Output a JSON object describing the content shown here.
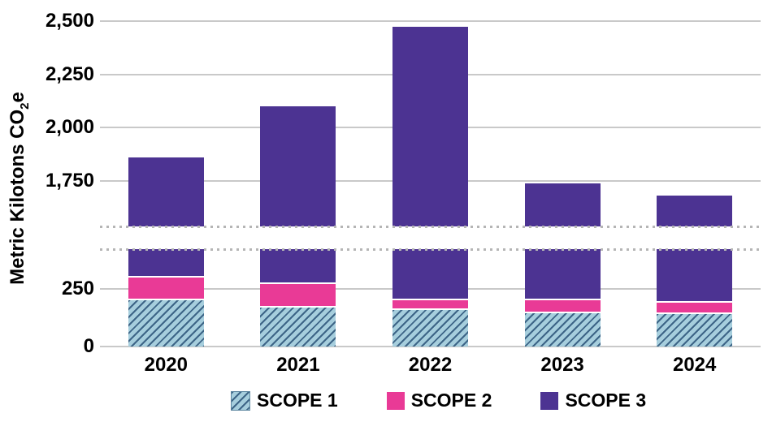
{
  "chart_data": {
    "type": "bar",
    "stacked": true,
    "title": "",
    "xlabel": "",
    "ylabel": "Metric Kilotons CO2e",
    "ylabel_parts": {
      "pre": "Metric Kilotons CO",
      "sub": "2",
      "post": "e"
    },
    "categories": [
      "2020",
      "2021",
      "2022",
      "2023",
      "2024"
    ],
    "series": [
      {
        "name": "SCOPE 1",
        "color": "#a6cedd",
        "hatch": true,
        "hatch_line_color": "#3d6587",
        "values": [
          200,
          170,
          160,
          145,
          140
        ]
      },
      {
        "name": "SCOPE 2",
        "color": "#e93a96",
        "hatch": false,
        "values": [
          100,
          100,
          40,
          55,
          50
        ]
      },
      {
        "name": "SCOPE 3",
        "color": "#4c3392",
        "hatch": false,
        "values": [
          1560,
          1830,
          2275,
          1540,
          1490
        ]
      }
    ],
    "totals": [
      1860,
      2100,
      2475,
      1740,
      1680
    ],
    "y_axis": {
      "lower_ticks": [
        0,
        250
      ],
      "upper_ticks": [
        1750,
        2000,
        2250,
        2500
      ],
      "axis_break_between": [
        420,
        1540
      ],
      "grid": true,
      "gridline_color": "#c9c9c9",
      "break_line_color": "#b5b5b5"
    },
    "legend_position": "bottom"
  }
}
